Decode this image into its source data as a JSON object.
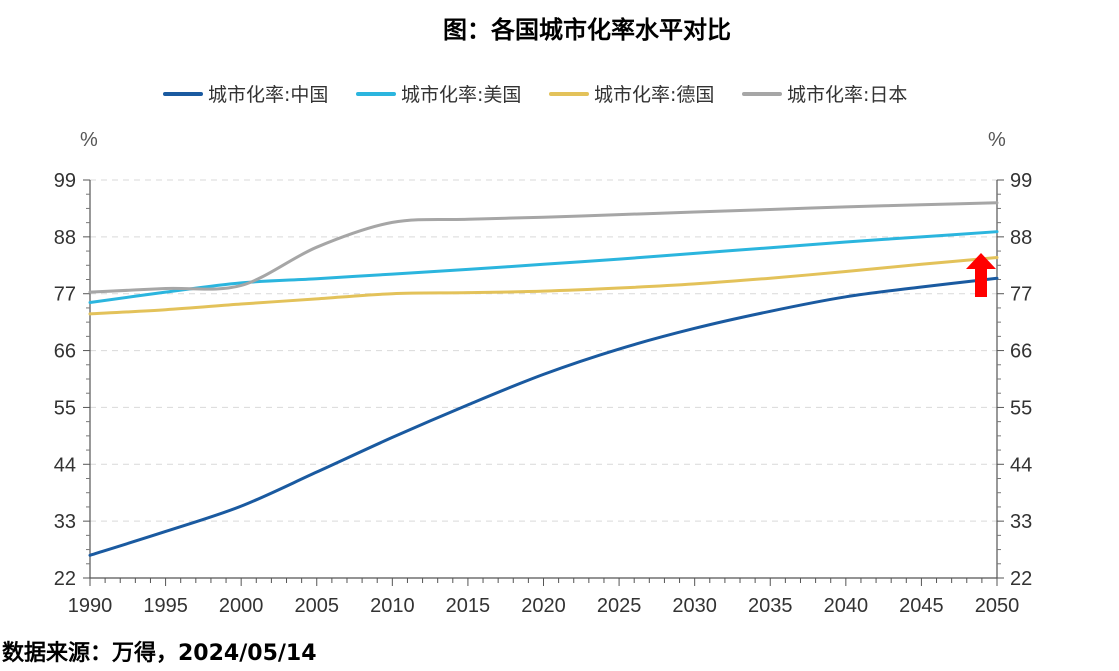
{
  "chart_data": {
    "type": "line",
    "title": "图：各国城市化率水平对比",
    "source": "数据来源：万得，2024/05/14",
    "ylabel_left": "%",
    "ylabel_right": "%",
    "xlabel": "",
    "x": [
      1990,
      1995,
      2000,
      2005,
      2010,
      2015,
      2020,
      2025,
      2030,
      2035,
      2040,
      2045,
      2050
    ],
    "xlim": [
      1990,
      2050
    ],
    "ylim": [
      22,
      99
    ],
    "yticks": [
      22,
      33,
      44,
      55,
      66,
      77,
      88,
      99
    ],
    "grid": true,
    "legend_position": "top",
    "series": [
      {
        "name": "城市化率:中国",
        "color": "#1a5aa0",
        "values": [
          26.4,
          31.0,
          35.9,
          42.5,
          49.2,
          55.5,
          61.4,
          66.3,
          70.3,
          73.6,
          76.4,
          78.3,
          80.0
        ]
      },
      {
        "name": "城市化率:美国",
        "color": "#2bb5de",
        "values": [
          75.3,
          77.3,
          79.1,
          79.9,
          80.8,
          81.7,
          82.7,
          83.7,
          84.8,
          85.9,
          87.0,
          88.0,
          89.0
        ]
      },
      {
        "name": "城市化率:德国",
        "color": "#e3c25a",
        "values": [
          73.1,
          73.9,
          75.0,
          76.0,
          77.0,
          77.2,
          77.5,
          78.1,
          78.9,
          80.0,
          81.3,
          82.7,
          84.0
        ]
      },
      {
        "name": "城市化率:日本",
        "color": "#a6a6a6",
        "values": [
          77.3,
          78.0,
          78.6,
          86.0,
          90.8,
          91.4,
          91.8,
          92.3,
          92.8,
          93.3,
          93.8,
          94.2,
          94.6
        ]
      }
    ],
    "annotation": {
      "type": "red-up-arrow",
      "near_x": 2049,
      "near_y": 80
    }
  }
}
